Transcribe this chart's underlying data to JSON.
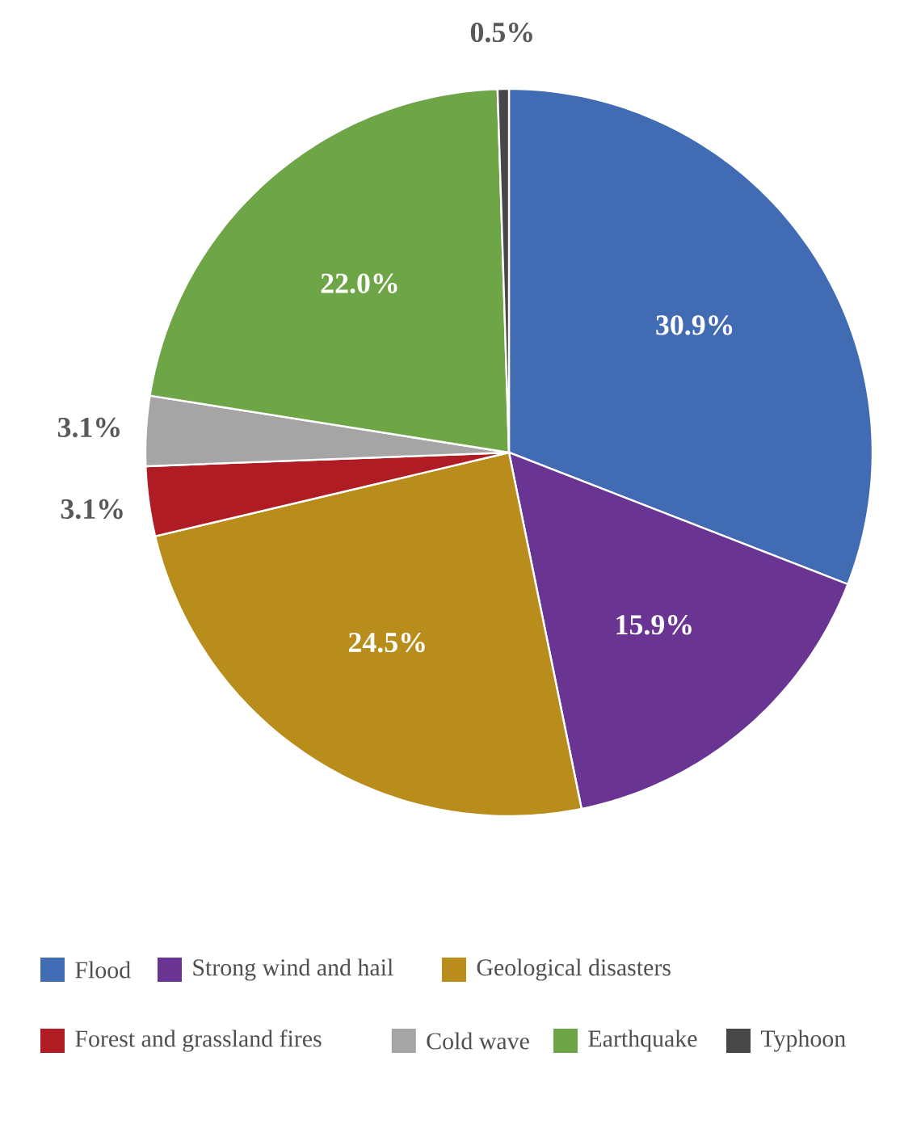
{
  "chart_data": {
    "type": "pie",
    "categories": [
      "Flood",
      "Strong wind and hail",
      "Geological disasters",
      "Forest and grassland fires",
      "Cold wave",
      "Earthquake",
      "Typhoon"
    ],
    "values": [
      30.9,
      15.9,
      24.5,
      3.1,
      3.1,
      22.0,
      0.5
    ],
    "colors": [
      "#416bb2",
      "#6a3592",
      "#b98d1b",
      "#b01c24",
      "#a5a5a5",
      "#6ea546",
      "#474747"
    ],
    "value_labels": [
      "30.9%",
      "15.9%",
      "24.5%",
      "3.1%",
      "3.1%",
      "22.0%",
      "0.5%"
    ],
    "legend": "bottom"
  }
}
